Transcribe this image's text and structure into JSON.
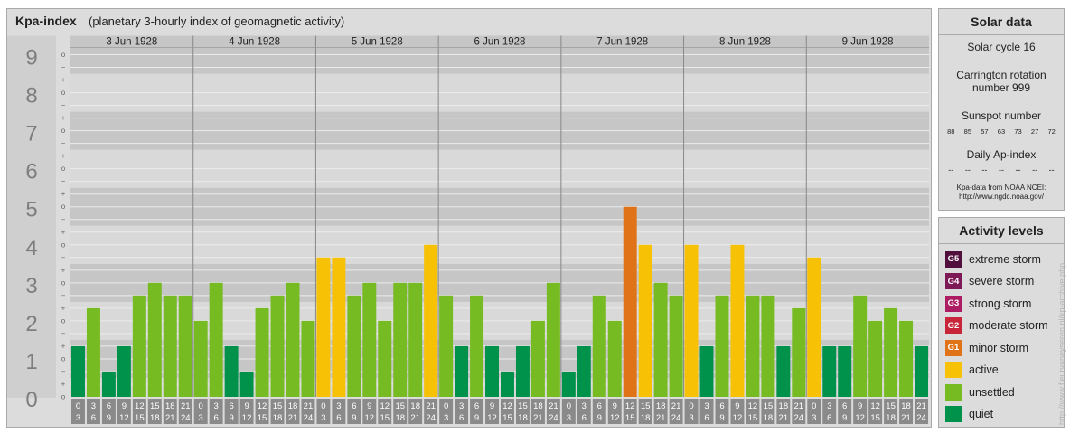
{
  "header": {
    "title": "Kpa-index",
    "subtitle": "(planetary 3-hourly index of geomagnetic activity)"
  },
  "chart_data": {
    "type": "bar",
    "y_range": [
      0,
      9
    ],
    "y_ticks": [
      "0",
      "1",
      "2",
      "3",
      "4",
      "5",
      "6",
      "7",
      "8",
      "9"
    ],
    "sub_ticks": [
      "+",
      "o",
      "−"
    ],
    "days": [
      "3 Jun 1928",
      "4 Jun 1928",
      "5 Jun 1928",
      "6 Jun 1928",
      "7 Jun 1928",
      "8 Jun 1928",
      "9 Jun 1928"
    ],
    "interval_labels": [
      [
        "0",
        "3"
      ],
      [
        "3",
        "6"
      ],
      [
        "6",
        "9"
      ],
      [
        "9",
        "12"
      ],
      [
        "12",
        "15"
      ],
      [
        "15",
        "18"
      ],
      [
        "18",
        "21"
      ],
      [
        "21",
        "24"
      ]
    ],
    "values": [
      [
        1.333,
        2.333,
        0.667,
        1.333,
        2.667,
        3.0,
        2.667,
        2.667
      ],
      [
        2.0,
        3.0,
        1.333,
        0.667,
        2.333,
        2.667,
        3.0,
        2.0
      ],
      [
        3.667,
        3.667,
        2.667,
        3.0,
        2.0,
        3.0,
        3.0,
        4.0
      ],
      [
        2.667,
        1.333,
        2.667,
        1.333,
        0.667,
        1.333,
        2.0,
        3.0
      ],
      [
        0.667,
        1.333,
        2.667,
        2.0,
        5.0,
        4.0,
        3.0,
        2.667
      ],
      [
        4.0,
        1.333,
        2.667,
        4.0,
        2.667,
        2.667,
        1.333,
        2.333
      ],
      [
        3.667,
        1.333,
        1.333,
        2.667,
        2.0,
        2.333,
        2.0,
        1.333
      ]
    ],
    "color_scale": {
      "quiet": "#00914a",
      "unsettled": "#76bb21",
      "active": "#f7c205",
      "minor": "#e07317",
      "moderate": "#c8253b",
      "strong": "#ad1b62",
      "severe": "#7e1957",
      "extreme": "#500f3c"
    }
  },
  "solar": {
    "title": "Solar data",
    "cycle": "Solar cycle 16",
    "carrington_line1": "Carrington rotation",
    "carrington_line2": "number 999",
    "sunspot_label": "Sunspot number",
    "sunspots": [
      "88",
      "85",
      "57",
      "63",
      "73",
      "27",
      "72"
    ],
    "ap_label": "Daily Ap-index",
    "ap_values": [
      "--",
      "--",
      "--",
      "--",
      "--",
      "--",
      "--"
    ],
    "source_line1": "Kpa-data from NOAA NCEI:",
    "source_line2": "http://www.ngdc.noaa.gov/"
  },
  "activity": {
    "title": "Activity levels",
    "levels": [
      {
        "badge": "G5",
        "label": "extreme storm",
        "color": "#500f3c"
      },
      {
        "badge": "G4",
        "label": "severe storm",
        "color": "#7e1957"
      },
      {
        "badge": "G3",
        "label": "strong storm",
        "color": "#ad1b62"
      },
      {
        "badge": "G2",
        "label": "moderate storm",
        "color": "#c8253b"
      },
      {
        "badge": "G1",
        "label": "minor storm",
        "color": "#e07317"
      },
      {
        "badge": "",
        "label": "active",
        "color": "#f7c205"
      },
      {
        "badge": "",
        "label": "unsettled",
        "color": "#76bb21"
      },
      {
        "badge": "",
        "label": "quiet",
        "color": "#00914a"
      }
    ]
  },
  "watermark": "http://www.fleurvaneyseren.nl/kp-archive.php"
}
